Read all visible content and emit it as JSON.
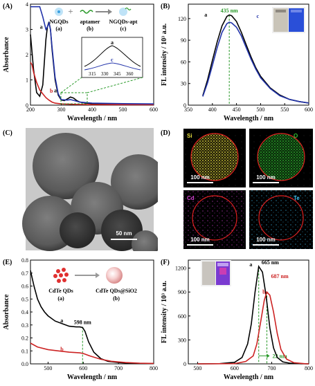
{
  "panels": {
    "A": {
      "label": "(A)"
    },
    "B": {
      "label": "(B)"
    },
    "C": {
      "label": "(C)",
      "scale": "50 nm"
    },
    "D": {
      "label": "(D)",
      "maps": [
        {
          "element": "Si",
          "scale": "100 nm",
          "color": "#e8e040"
        },
        {
          "element": "O",
          "scale": "100 nm",
          "color": "#30c030"
        },
        {
          "element": "Cd",
          "scale": "100 nm",
          "color": "#d040d0"
        },
        {
          "element": "Te",
          "scale": "100 nm",
          "color": "#40c0f0"
        }
      ]
    },
    "E": {
      "label": "(E)"
    },
    "F": {
      "label": "(F)"
    }
  },
  "chart_data": [
    {
      "id": "A",
      "type": "line",
      "xlabel": "Wavelength / nm",
      "ylabel": "Absorbance",
      "xlim": [
        200,
        600
      ],
      "ylim": [
        0,
        4
      ],
      "xticks": [
        "200",
        "300",
        "400",
        "500",
        "600"
      ],
      "yticks": [
        "0",
        "1",
        "2",
        "3",
        "4"
      ],
      "series": [
        {
          "name": "a",
          "color": "#000000",
          "x": [
            200,
            210,
            220,
            230,
            240,
            250,
            255,
            260,
            265,
            270,
            280,
            290,
            300,
            310,
            320,
            330,
            340,
            350,
            360,
            370,
            380,
            400,
            450,
            500,
            550,
            600
          ],
          "y": [
            2.8,
            1.4,
            0.5,
            0.35,
            0.8,
            2.6,
            3.1,
            3.3,
            3.0,
            2.2,
            1.0,
            0.4,
            0.2,
            0.18,
            0.25,
            0.32,
            0.28,
            0.18,
            0.12,
            0.1,
            0.08,
            0.06,
            0.05,
            0.04,
            0.04,
            0.03
          ]
        },
        {
          "name": "b",
          "color": "#cc2222",
          "x": [
            200,
            205,
            210,
            220,
            230,
            240,
            250,
            260,
            270,
            280,
            300,
            350,
            400,
            500,
            600
          ],
          "y": [
            1.7,
            1.6,
            1.3,
            0.9,
            0.6,
            0.45,
            0.3,
            0.2,
            0.12,
            0.08,
            0.05,
            0.03,
            0.02,
            0.02,
            0.02
          ]
        },
        {
          "name": "c",
          "color": "#2233aa",
          "x": [
            200,
            210,
            220,
            230,
            240,
            250,
            255,
            260,
            265,
            270,
            280,
            290,
            300,
            320,
            330,
            340,
            360,
            400,
            500,
            600
          ],
          "y": [
            3.9,
            3.9,
            3.9,
            3.9,
            3.5,
            3.0,
            3.1,
            3.25,
            3.0,
            2.3,
            1.1,
            0.45,
            0.22,
            0.2,
            0.22,
            0.19,
            0.12,
            0.08,
            0.06,
            0.05
          ]
        }
      ],
      "annotations": [
        "a",
        "b",
        "c"
      ],
      "schematic": {
        "labels": [
          "NGQDs",
          "aptamer",
          "NGQDs-apt"
        ],
        "sublabels": [
          "(a)",
          "(b)",
          "(c)"
        ]
      },
      "inset": {
        "xticks": [
          "315",
          "330",
          "345",
          "360"
        ],
        "labels": [
          "a",
          "c"
        ]
      }
    },
    {
      "id": "B",
      "type": "line",
      "xlabel": "Wavelength / nm",
      "ylabel": "FL intensity / 10³ a.u.",
      "xlim": [
        350,
        600
      ],
      "ylim": [
        0,
        140
      ],
      "xticks": [
        "350",
        "400",
        "450",
        "500",
        "550",
        "600"
      ],
      "yticks": [
        "0",
        "30",
        "60",
        "90",
        "120"
      ],
      "peak_label": "435 nm",
      "peak_x": 435,
      "series": [
        {
          "name": "a",
          "color": "#000000",
          "x": [
            380,
            390,
            400,
            410,
            420,
            430,
            435,
            440,
            450,
            460,
            470,
            480,
            490,
            500,
            520,
            540,
            560,
            580,
            600
          ],
          "y": [
            13,
            35,
            62,
            88,
            110,
            123,
            125,
            124,
            116,
            101,
            84,
            67,
            52,
            40,
            24,
            14,
            8,
            5,
            3
          ]
        },
        {
          "name": "c",
          "color": "#2233aa",
          "x": [
            380,
            390,
            400,
            410,
            420,
            430,
            435,
            440,
            450,
            460,
            470,
            480,
            490,
            500,
            520,
            540,
            560,
            580,
            600
          ],
          "y": [
            12,
            31,
            55,
            80,
            101,
            113,
            115,
            114,
            108,
            96,
            80,
            64,
            50,
            38,
            23,
            13,
            8,
            5,
            3
          ]
        }
      ],
      "annotations": [
        "a",
        "c"
      ]
    },
    {
      "id": "E",
      "type": "line",
      "xlabel": "Wavelength / nm",
      "ylabel": "Absorbance",
      "xlim": [
        450,
        800
      ],
      "ylim": [
        0,
        0.8
      ],
      "xticks": [
        "500",
        "600",
        "700",
        "800"
      ],
      "yticks": [
        "0.0",
        "0.1",
        "0.2",
        "0.3",
        "0.4",
        "0.5",
        "0.6",
        "0.7",
        "0.8"
      ],
      "peak_label": "598 nm",
      "peak_x": 598,
      "schematic": {
        "labels": [
          "CdTe QDs",
          "CdTe QDs@SiO2"
        ],
        "sublabels": [
          "(a)",
          "(b)"
        ]
      },
      "series": [
        {
          "name": "a",
          "color": "#000000",
          "x": [
            450,
            460,
            470,
            480,
            490,
            500,
            520,
            540,
            560,
            580,
            590,
            598,
            605,
            615,
            630,
            650,
            670,
            700,
            730,
            760,
            800
          ],
          "y": [
            0.72,
            0.6,
            0.5,
            0.44,
            0.4,
            0.37,
            0.33,
            0.31,
            0.29,
            0.285,
            0.285,
            0.28,
            0.25,
            0.17,
            0.09,
            0.04,
            0.02,
            0.01,
            0.005,
            0.003,
            0.002
          ]
        },
        {
          "name": "b",
          "color": "#cc2222",
          "x": [
            450,
            470,
            500,
            530,
            560,
            590,
            600,
            620,
            650,
            680,
            720,
            760,
            800
          ],
          "y": [
            0.16,
            0.13,
            0.11,
            0.1,
            0.09,
            0.085,
            0.08,
            0.06,
            0.035,
            0.02,
            0.01,
            0.005,
            0.003
          ]
        }
      ],
      "annotations": [
        "a",
        "b"
      ]
    },
    {
      "id": "F",
      "type": "line",
      "xlabel": "Wavelength / nm",
      "ylabel": "FL intensity / 10³ a.u.",
      "xlim": [
        475,
        800
      ],
      "ylim": [
        0,
        1300
      ],
      "xticks": [
        "500",
        "600",
        "700",
        "800"
      ],
      "yticks": [
        "0",
        "300",
        "600",
        "900",
        "1200"
      ],
      "peak_labels": [
        "665 nm",
        "687 nm"
      ],
      "shift_label": "22 nm",
      "series": [
        {
          "name": "a",
          "color": "#000000",
          "x": [
            500,
            560,
            600,
            620,
            635,
            645,
            655,
            665,
            675,
            685,
            695,
            705,
            715,
            730,
            750,
            780,
            800
          ],
          "y": [
            0,
            3,
            20,
            80,
            250,
            500,
            900,
            1220,
            1150,
            850,
            450,
            200,
            80,
            25,
            8,
            2,
            0
          ]
        },
        {
          "name": "b",
          "color": "#cc2222",
          "x": [
            500,
            600,
            630,
            650,
            660,
            670,
            680,
            687,
            695,
            705,
            715,
            725,
            740,
            760,
            790,
            800
          ],
          "y": [
            0,
            3,
            30,
            100,
            250,
            520,
            800,
            900,
            860,
            650,
            380,
            180,
            60,
            15,
            2,
            0
          ]
        }
      ],
      "annotations": [
        "a",
        "b"
      ]
    }
  ]
}
